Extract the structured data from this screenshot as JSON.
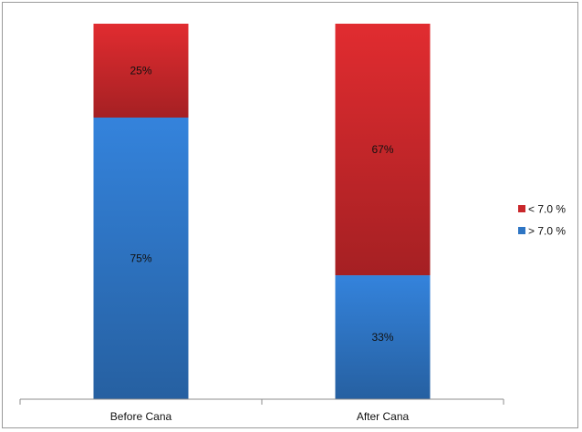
{
  "chart_data": {
    "type": "bar",
    "stacked": true,
    "categories": [
      "Before Cana",
      "After Cana"
    ],
    "series": [
      {
        "name": "> 7.0 %",
        "values": [
          75,
          33
        ],
        "labels": [
          "75%",
          "33%"
        ],
        "color": "#2e75c4"
      },
      {
        "name": "< 7.0 %",
        "values": [
          25,
          67
        ],
        "labels": [
          "25%",
          "67%"
        ],
        "color": "#c9272b"
      }
    ],
    "ylim": [
      0,
      100
    ],
    "grid": false,
    "legend_position": "right",
    "legend_order": [
      "< 7.0 %",
      "> 7.0 %"
    ]
  }
}
